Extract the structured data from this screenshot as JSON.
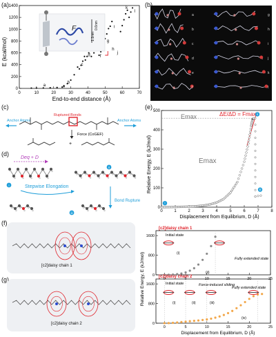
{
  "panels": {
    "a": {
      "label": "(a)"
    },
    "b": {
      "label": "(b)"
    },
    "c": {
      "label": "(c)"
    },
    "d": {
      "label": "(d)"
    },
    "e": {
      "label": "(e)"
    },
    "f": {
      "label": "(f)"
    },
    "g": {
      "label": "(g)"
    }
  },
  "panel_a": {
    "ylabel": "E (kcal/mol)",
    "xlabel": "End-to-end distance (Å)",
    "inset_labels": {
      "F": "F",
      "dim": "1.1nm",
      "dist": "0.6nm"
    },
    "point_labels": [
      "a",
      "b",
      "c",
      "d",
      "e",
      "f",
      "g",
      "h",
      "i",
      "j",
      "k",
      "l"
    ]
  },
  "panel_b": {
    "row_labels_left": [
      "a",
      "b",
      "c",
      "d",
      "e",
      "f"
    ],
    "row_labels_right": [
      "g",
      "h",
      "i",
      "j",
      "k",
      "l"
    ]
  },
  "panel_c": {
    "anchor_left": "Anchor Atoms",
    "anchor_right": "Anchor Atoms",
    "ruptured": "Ruptured Bonds",
    "force": "Force (CoGEF)"
  },
  "panel_d": {
    "deq": "Deq + D",
    "elongation": "Stepwise Elongation",
    "bond_rupture": "Bond Rupture",
    "markers": [
      "i",
      "ii",
      "iii"
    ]
  },
  "panel_e": {
    "emax_top": "Emax",
    "emax_mid": "Emax",
    "fmax": "ΔE/ΔD = Fmax",
    "ylabel": "Relative Energy, E (kJ/mol)",
    "xlabel": "Displacement from Equilibrium, D (Å)",
    "markers": [
      "i",
      "ii",
      "iii"
    ]
  },
  "panel_f": {
    "caption": "[c2]daisy chain 1",
    "plot_title": "[c2]daisy chain 1",
    "initial": "Initial state",
    "extended": "Fully extended state",
    "roman": [
      "(i)",
      "(ii)"
    ]
  },
  "panel_g": {
    "caption": "[c2]daisy chain 2",
    "plot_title": "[c2]daisy chain 2",
    "initial": "Initial state",
    "sliding": "Force-induced sliding",
    "extended": "Fully extended state",
    "roman": [
      "(i)",
      "(ii)",
      "(iii)",
      "(iv)"
    ]
  },
  "shared_fg": {
    "ylabel": "Relative Energy, E (kJ/mol)",
    "xlabel": "Displacement from Equilibrium, D (Å)"
  },
  "chart_data": [
    {
      "type": "scatter",
      "panel": "a",
      "xlabel": "End-to-end distance (Å)",
      "ylabel": "E (kcal/mol)",
      "xlim": [
        0,
        70
      ],
      "ylim": [
        0,
        1400
      ],
      "xticks": [
        0,
        10,
        20,
        30,
        40,
        50,
        60,
        70
      ],
      "yticks": [
        0,
        200,
        400,
        600,
        800,
        1000,
        1200,
        1400
      ],
      "segments": [
        {
          "x": [
            7,
            10,
            14,
            18,
            22,
            25,
            26
          ],
          "y": [
            5,
            6,
            8,
            10,
            15,
            22,
            30
          ]
        },
        {
          "x": [
            26,
            28,
            30,
            32,
            34
          ],
          "y": [
            45,
            80,
            140,
            230,
            360
          ]
        },
        {
          "x": [
            35,
            36,
            37,
            38
          ],
          "y": [
            330,
            390,
            460,
            540
          ]
        },
        {
          "x": [
            38.5,
            39.5,
            40.5,
            41.5
          ],
          "y": [
            480,
            540,
            600,
            660
          ]
        },
        {
          "x": [
            42,
            43.5,
            45,
            46
          ],
          "y": [
            540,
            600,
            680,
            750
          ]
        },
        {
          "x": [
            46.5,
            47.5,
            48.5
          ],
          "y": [
            560,
            620,
            690
          ]
        },
        {
          "x": [
            49,
            50,
            51,
            52
          ],
          "y": [
            770,
            840,
            920,
            1010
          ]
        },
        {
          "x": [
            53,
            54
          ],
          "y": [
            1050,
            1130
          ]
        },
        {
          "x": [
            59,
            60,
            61,
            62,
            63
          ],
          "y": [
            960,
            1060,
            1160,
            1260,
            1320
          ]
        },
        {
          "x": [
            64,
            65,
            66
          ],
          "y": [
            1200,
            1290,
            1360
          ]
        }
      ]
    },
    {
      "type": "line",
      "panel": "e",
      "xlabel": "Displacement from Equilibrium, D (Å)",
      "ylabel": "Relative Energy, E (kJ/mol)",
      "xlim": [
        0,
        8
      ],
      "ylim": [
        0,
        500
      ],
      "xticks": [
        0,
        1,
        2,
        3,
        4,
        5,
        6,
        7,
        8
      ],
      "yticks": [
        0,
        100,
        200,
        300,
        400,
        500
      ],
      "x": [
        0,
        0.5,
        1,
        1.5,
        2,
        2.5,
        3,
        3.5,
        4,
        4.5,
        5,
        5.5,
        6,
        6.3,
        6.5,
        6.6,
        6.7
      ],
      "y": [
        0,
        0.5,
        1,
        2,
        3,
        5,
        8,
        14,
        24,
        42,
        75,
        130,
        235,
        330,
        420,
        455,
        460
      ],
      "drop": {
        "x": 6.8,
        "y_from": 460,
        "y_to": 55
      },
      "tail": {
        "x": [
          6.8,
          7.0,
          7.2
        ],
        "y": [
          55,
          58,
          60
        ]
      }
    },
    {
      "type": "scatter",
      "panel": "f",
      "title": "[c2]daisy chain 1",
      "xlabel": "Displacement from Equilibrium, D (Å)",
      "ylabel": "Relative Energy, E (kJ/mol)",
      "xlim": [
        -2,
        25
      ],
      "ylim": [
        0,
        1800
      ],
      "xticks": [
        0,
        5,
        10,
        15,
        20,
        25
      ],
      "yticks": [
        0,
        800,
        1600
      ],
      "x": [
        0,
        1,
        2,
        3,
        4,
        5,
        6,
        7,
        8,
        9,
        10,
        11,
        12
      ],
      "y": [
        0,
        3,
        12,
        28,
        55,
        100,
        170,
        270,
        420,
        610,
        860,
        1170,
        1550
      ]
    },
    {
      "type": "scatter",
      "panel": "g",
      "title": "[c2]daisy chain 2",
      "xlabel": "Displacement from Equilibrium, D (Å)",
      "ylabel": "Relative Energy, E (kJ/mol)",
      "xlim": [
        -2,
        25
      ],
      "ylim": [
        0,
        1800
      ],
      "xticks": [
        0,
        5,
        10,
        15,
        20,
        25
      ],
      "yticks": [
        0,
        800,
        1600
      ],
      "x": [
        0,
        1,
        2,
        3,
        4,
        5,
        6,
        7,
        8,
        9,
        10,
        11,
        12,
        13,
        14,
        15,
        16,
        17,
        18,
        19,
        20,
        21,
        22,
        23
      ],
      "y": [
        0,
        5,
        15,
        30,
        48,
        65,
        80,
        95,
        110,
        130,
        155,
        185,
        225,
        275,
        335,
        410,
        500,
        610,
        730,
        860,
        990,
        1100,
        1170,
        1190
      ]
    }
  ],
  "colors": {
    "red": "#e0232b",
    "blue": "#2ba8df",
    "gray": "#888888",
    "orange": "#f2a74a",
    "dark": "#222222"
  }
}
